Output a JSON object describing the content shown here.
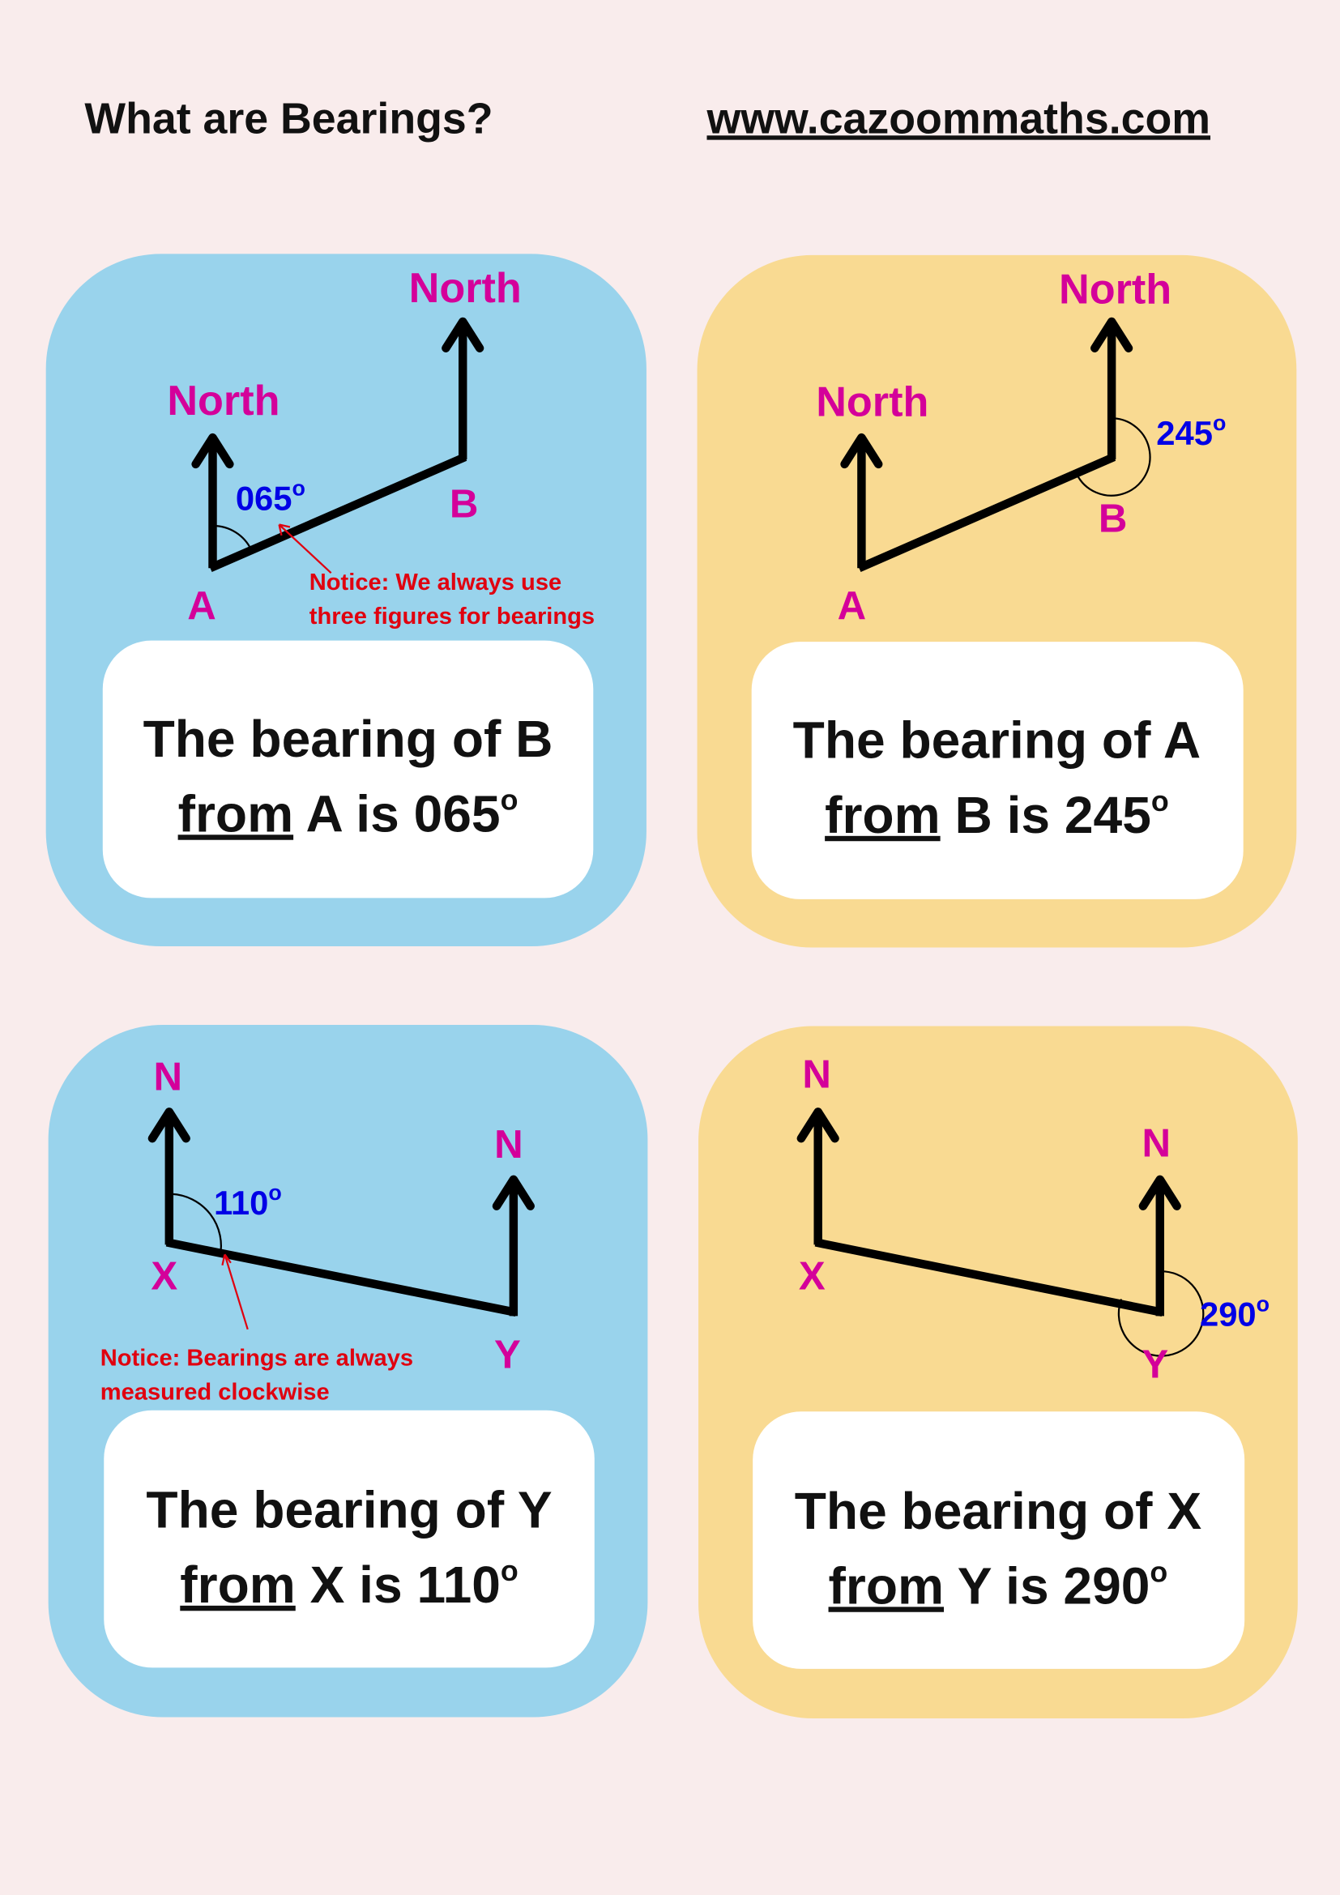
{
  "header": {
    "title": "What are Bearings?",
    "website": "www.cazoommaths.com"
  },
  "colors": {
    "background": "#f9ecec",
    "card_blue": "#99d3ec",
    "card_yellow": "#f9da92",
    "point_label": "#d4009a",
    "angle_label": "#0000e6",
    "notice": "#e0000f"
  },
  "cards": [
    {
      "north_left": "North",
      "north_right": "North",
      "point_start": "A",
      "point_end": "B",
      "angle": "065",
      "degree": "o",
      "notice": [
        "Notice: We always use",
        "three figures for bearings"
      ],
      "statement": {
        "line1": "The bearing of B",
        "from": "from",
        "rest": " A is 065",
        "degree": "o"
      }
    },
    {
      "north_left": "North",
      "north_right": "North",
      "point_start": "A",
      "point_end": "B",
      "angle": "245",
      "degree": "o",
      "statement": {
        "line1": "The bearing of A",
        "from": "from",
        "rest": " B is 245",
        "degree": "o"
      }
    },
    {
      "north_left": "N",
      "north_right": "N",
      "point_start": "X",
      "point_end": "Y",
      "angle": "110",
      "degree": "o",
      "notice": [
        "Notice: Bearings are always",
        "measured clockwise"
      ],
      "statement": {
        "line1": "The bearing of Y",
        "from": "from",
        "rest": " X is 110",
        "degree": "o"
      }
    },
    {
      "north_left": "N",
      "north_right": "N",
      "point_start": "X",
      "point_end": "Y",
      "angle": "290",
      "degree": "o",
      "statement": {
        "line1": "The bearing of X",
        "from": "from",
        "rest": " Y is 290",
        "degree": "o"
      }
    }
  ]
}
